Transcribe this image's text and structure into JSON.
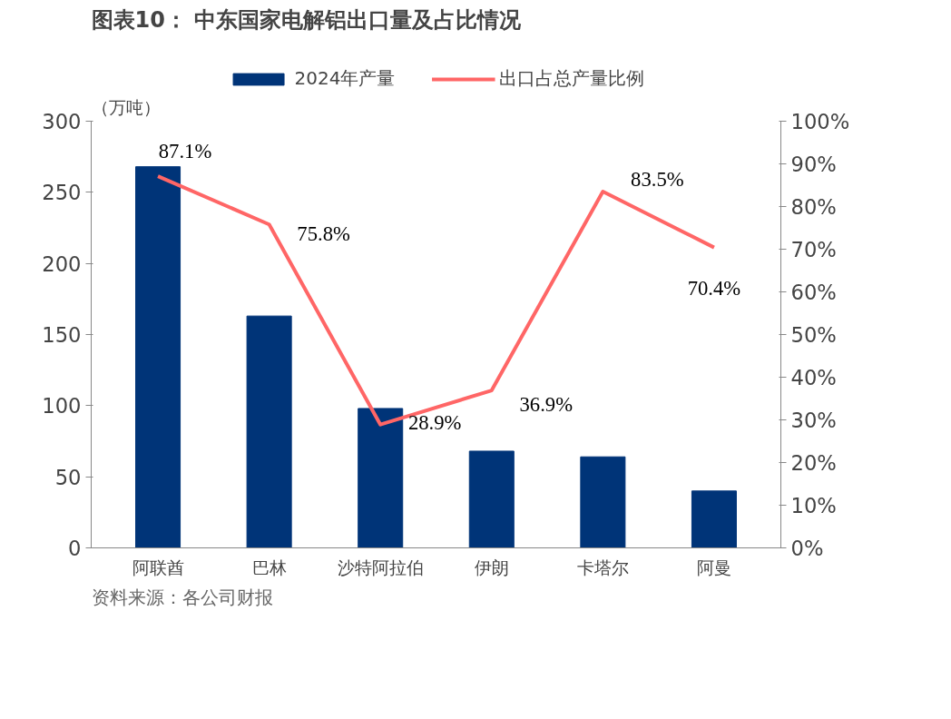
{
  "chart_data": {
    "type": "bar",
    "title": "图表10：  中东国家电解铝出口量及占比情况",
    "ylabel": "（万吨）",
    "categories": [
      "阿联酋",
      "巴林",
      "沙特阿拉伯",
      "伊朗",
      "卡塔尔",
      "阿曼"
    ],
    "series": [
      {
        "name": "2024年产量",
        "color": "#003478",
        "values": [
          268,
          163,
          98,
          68,
          64,
          40
        ]
      },
      {
        "name": "出口占总产量比例",
        "type": "line",
        "axis": "y2",
        "color": "#ff6666",
        "values": [
          87.1,
          75.8,
          28.9,
          36.9,
          83.5,
          70.4
        ],
        "value_labels": [
          "87.1%",
          "75.8%",
          "28.9%",
          "36.9%",
          "83.5%",
          "70.4%"
        ]
      }
    ],
    "ylim": [
      0,
      300
    ],
    "yticks": [
      0,
      50,
      100,
      150,
      200,
      250,
      300
    ],
    "y2lim": [
      0,
      100
    ],
    "y2ticks": [
      {
        "value": 0,
        "label": "0%"
      },
      {
        "value": 10,
        "label": "10%"
      },
      {
        "value": 20,
        "label": "20%"
      },
      {
        "value": 30,
        "label": "30%"
      },
      {
        "value": 40,
        "label": "40%"
      },
      {
        "value": 50,
        "label": "50%"
      },
      {
        "value": 60,
        "label": "60%"
      },
      {
        "value": 70,
        "label": "70%"
      },
      {
        "value": 80,
        "label": "80%"
      },
      {
        "value": 90,
        "label": "90%"
      },
      {
        "value": 100,
        "label": "100%"
      }
    ],
    "grid": false,
    "legend": "top",
    "annotations": [
      "资料来源：各公司财报"
    ]
  }
}
